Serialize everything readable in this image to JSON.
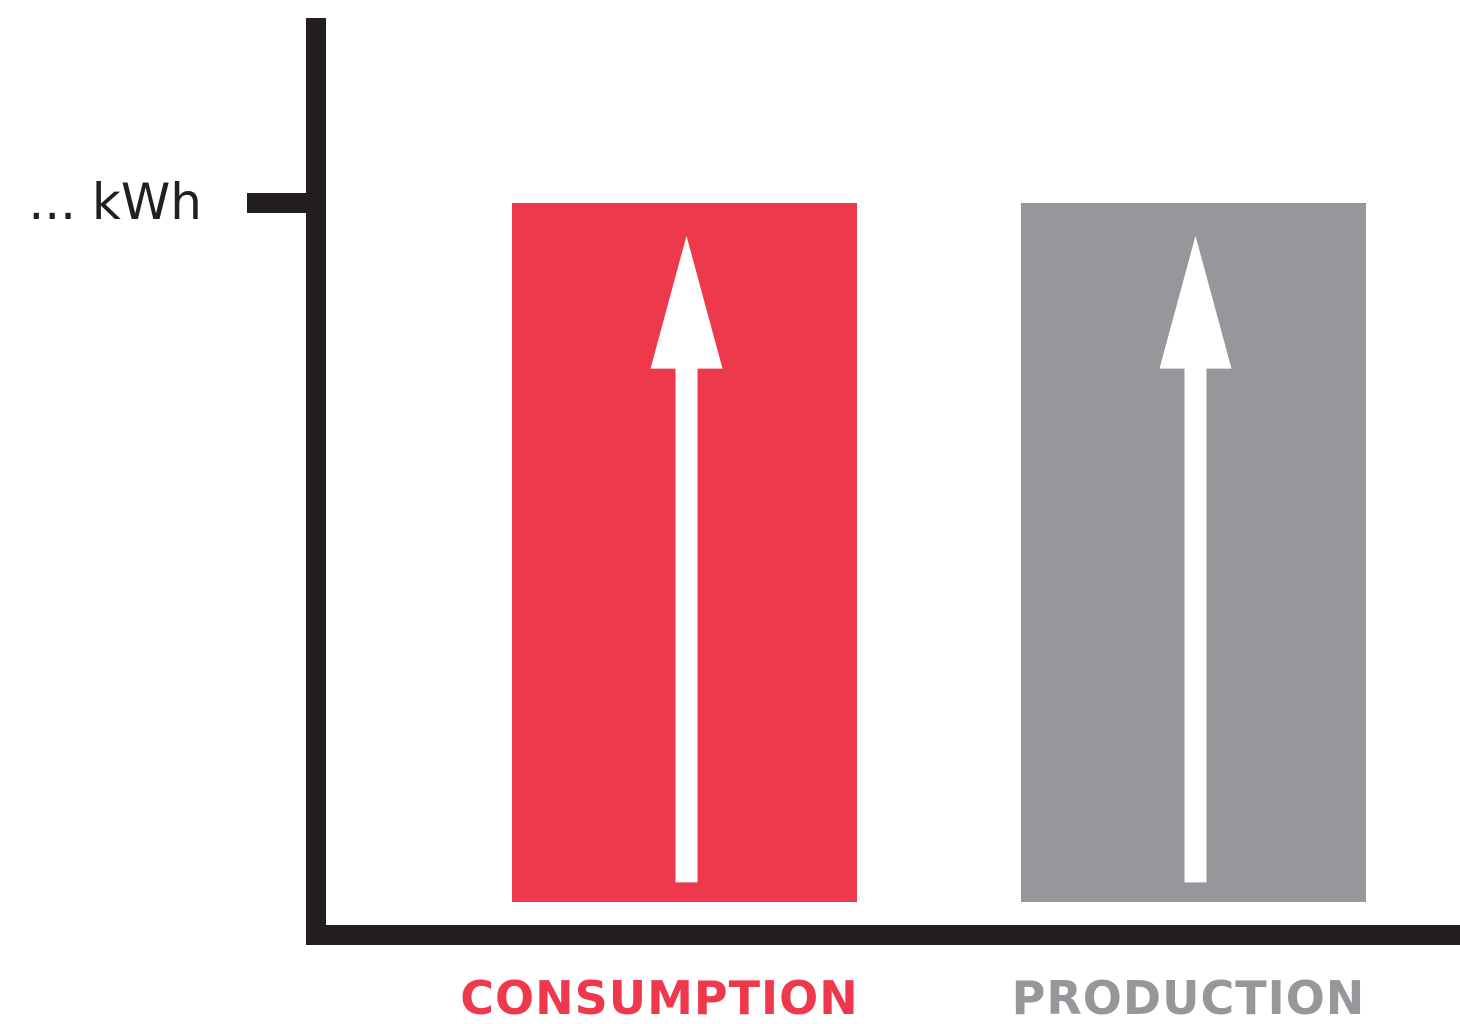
{
  "chart_data": {
    "type": "bar",
    "categories": [
      "CONSUMPTION",
      "PRODUCTION"
    ],
    "values": [
      1,
      1
    ],
    "ylim": [
      0,
      1.01
    ],
    "y_tick_value": 1,
    "y_tick_label": "... kWh",
    "grid": false,
    "legend": "none",
    "bar_markers": "up-arrow",
    "colors": {
      "axis": "#231f20",
      "consumption": "#ee384b",
      "production": "#96979a",
      "arrow": "#ffffff",
      "consumption_label": "#ee384b",
      "production_label": "#96979a"
    }
  }
}
